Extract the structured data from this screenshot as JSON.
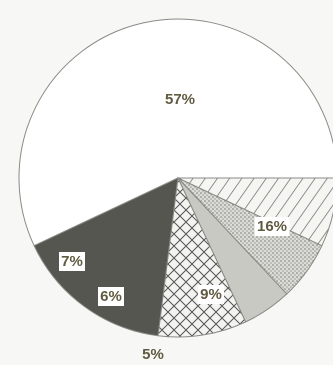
{
  "chart_data": {
    "type": "pie",
    "title": "",
    "slices": [
      {
        "label": "57%",
        "value": 57,
        "pattern": "white"
      },
      {
        "label": "16%",
        "value": 16,
        "pattern": "dark",
        "color": "#565650"
      },
      {
        "label": "9%",
        "value": 9,
        "pattern": "crosshatch"
      },
      {
        "label": "5%",
        "value": 5,
        "pattern": "light-gray"
      },
      {
        "label": "6%",
        "value": 6,
        "pattern": "stipple"
      },
      {
        "label": "7%",
        "value": 7,
        "pattern": "diagonal"
      }
    ],
    "legend": "none",
    "label_color": "#5f5a40"
  }
}
